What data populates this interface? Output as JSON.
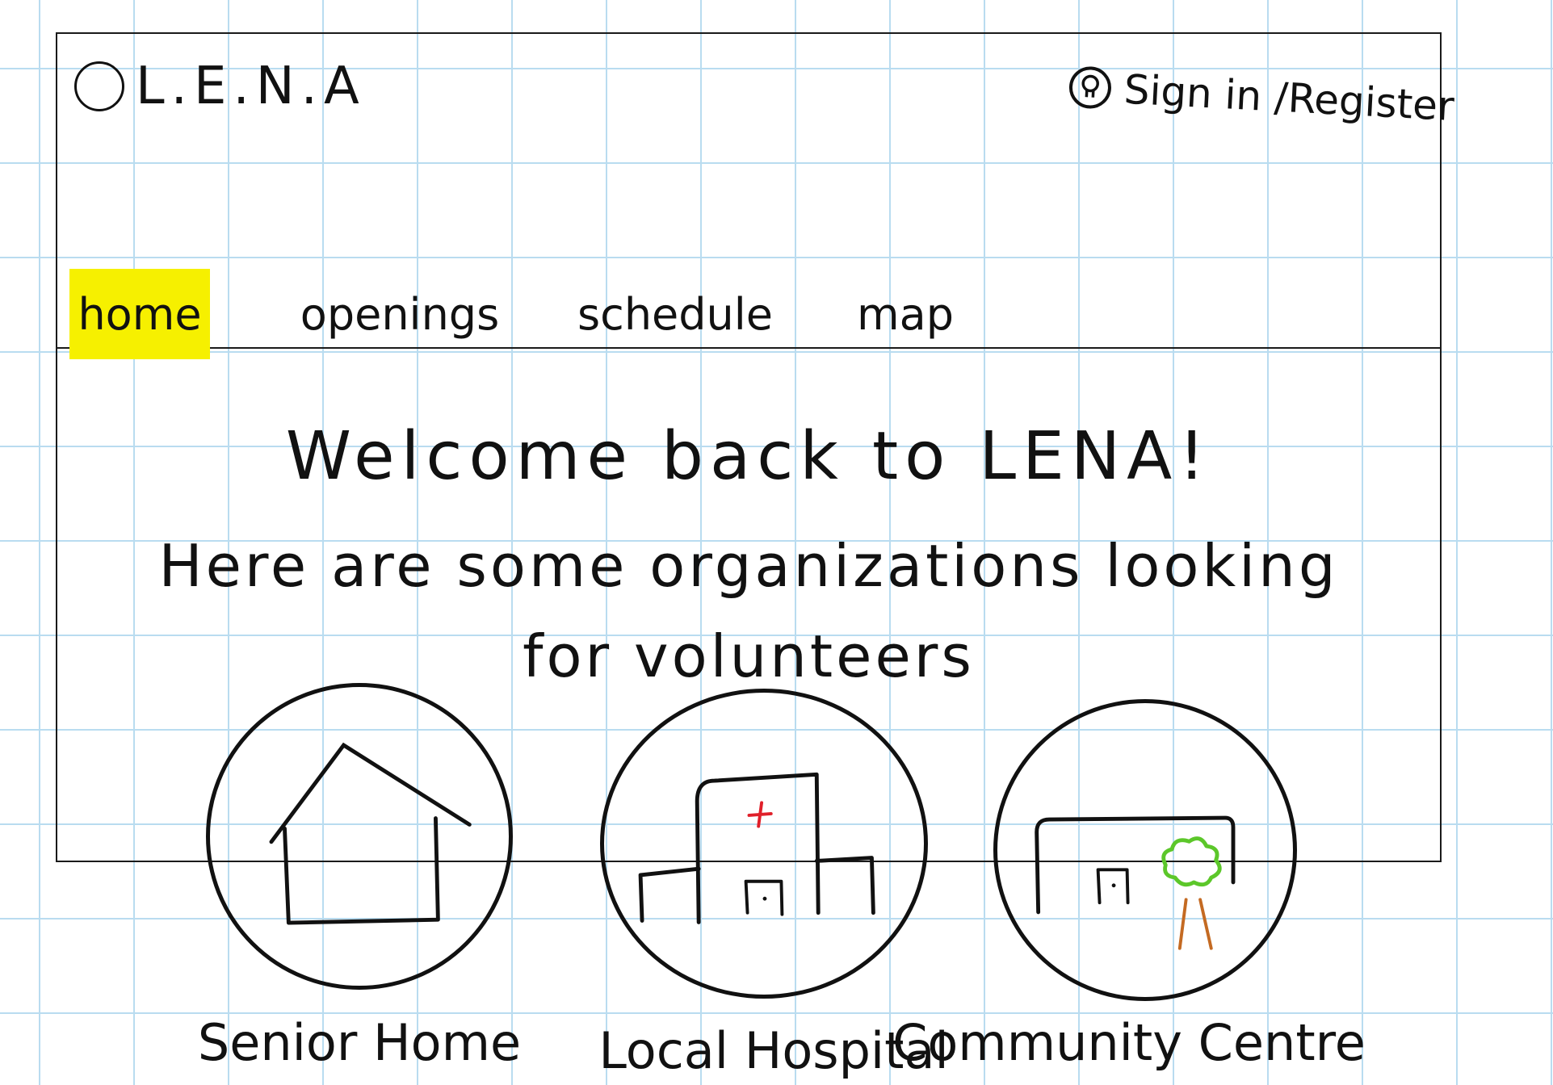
{
  "header": {
    "logo_text": "L.E.N.A",
    "signin_label": "Sign in /Register"
  },
  "nav": {
    "items": [
      {
        "label": "home",
        "active": true
      },
      {
        "label": "openings",
        "active": false
      },
      {
        "label": "schedule",
        "active": false
      },
      {
        "label": "map",
        "active": false
      }
    ]
  },
  "main": {
    "welcome": "Welcome back to LENA!",
    "subtitle_line1": "Here are some organizations looking",
    "subtitle_line2": "for volunteers"
  },
  "organizations": [
    {
      "label": "Senior Home",
      "icon": "house-icon"
    },
    {
      "label": "Local Hospital",
      "icon": "hospital-icon"
    },
    {
      "label": "Community Centre",
      "icon": "community-centre-icon"
    }
  ],
  "colors": {
    "active_tab_highlight": "#f6f000",
    "grid_lines": "#b9dcf0",
    "ink": "#111111",
    "cross": "#e0202a",
    "tree_leaves": "#5cc72a",
    "tree_trunk": "#c46a22"
  }
}
